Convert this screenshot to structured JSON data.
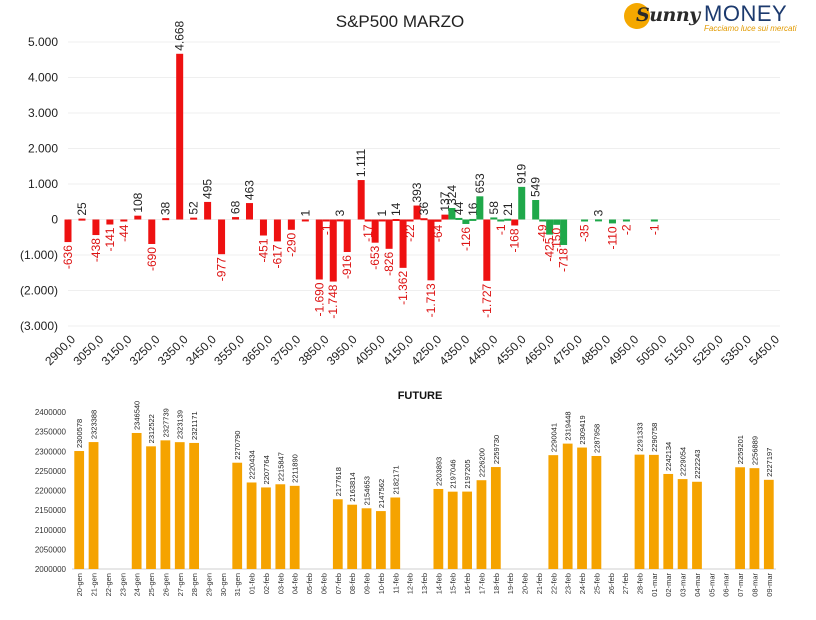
{
  "logo": {
    "sunny": "Sunny",
    "money": "MONEY",
    "tagline": "Facciamo luce sui mercati"
  },
  "colors": {
    "negative": "#ee1111",
    "positive": "#1fa84a",
    "future": "#f5a300",
    "text": "#222222",
    "neg_text": "#dd1111"
  },
  "chart_data": [
    {
      "type": "bar",
      "title": "S&P500 MARZO",
      "ylim": [
        -3000,
        5000
      ],
      "yticks": [
        5000,
        4000,
        3000,
        2000,
        1000,
        0,
        -1000,
        -2000,
        -3000
      ],
      "ytick_labels": [
        "5.000",
        "4.000",
        "3.000",
        "2.000",
        "1.000",
        "0",
        "(1.000)",
        "(2.000)",
        "(3.000)"
      ],
      "x_range": [
        2900,
        5450
      ],
      "xtick_labels": [
        "2900,0",
        "3050,0",
        "3150,0",
        "3250,0",
        "3350,0",
        "3450,0",
        "3550,0",
        "3650,0",
        "3750,0",
        "3850,0",
        "3950,0",
        "4050,0",
        "4150,0",
        "4250,0",
        "4350,0",
        "4450,0",
        "4550,0",
        "4650,0",
        "4750,0",
        "4850,0",
        "4950,0",
        "5050,0",
        "5150,0",
        "5250,0",
        "5350,0",
        "5450,0"
      ],
      "bars": [
        {
          "strike": 2900,
          "value": -636,
          "label": "-636",
          "color": "red"
        },
        {
          "strike": 2950,
          "value": 25,
          "label": "25",
          "color": "red"
        },
        {
          "strike": 3000,
          "value": -438,
          "label": "-438",
          "color": "red"
        },
        {
          "strike": 3050,
          "value": -141,
          "label": "-141",
          "color": "red"
        },
        {
          "strike": 3100,
          "value": -44,
          "label": "-44",
          "color": "red"
        },
        {
          "strike": 3150,
          "value": 108,
          "label": "108",
          "color": "red"
        },
        {
          "strike": 3200,
          "value": -690,
          "label": "-690",
          "color": "red"
        },
        {
          "strike": 3250,
          "value": 38,
          "label": "38",
          "color": "red"
        },
        {
          "strike": 3300,
          "value": 4668,
          "label": "4.668",
          "color": "red"
        },
        {
          "strike": 3350,
          "value": 52,
          "label": "52",
          "color": "red"
        },
        {
          "strike": 3400,
          "value": 495,
          "label": "495",
          "color": "red"
        },
        {
          "strike": 3450,
          "value": -977,
          "label": "-977",
          "color": "red"
        },
        {
          "strike": 3500,
          "value": 68,
          "label": "68",
          "color": "red"
        },
        {
          "strike": 3550,
          "value": 463,
          "label": "463",
          "color": "red"
        },
        {
          "strike": 3600,
          "value": -451,
          "label": "-451",
          "color": "red"
        },
        {
          "strike": 3650,
          "value": -617,
          "label": "-617",
          "color": "red"
        },
        {
          "strike": 3700,
          "value": -290,
          "label": "-290",
          "color": "red"
        },
        {
          "strike": 3750,
          "value": 1,
          "label": "1",
          "color": "red"
        },
        {
          "strike": 3800,
          "value": -1690,
          "label": "-1.690",
          "color": "red"
        },
        {
          "strike": 3825,
          "value": -1,
          "label": "-1",
          "color": "red"
        },
        {
          "strike": 3850,
          "value": -1748,
          "label": "-1.748",
          "color": "red"
        },
        {
          "strike": 3875,
          "value": 3,
          "label": "3",
          "color": "red"
        },
        {
          "strike": 3900,
          "value": -916,
          "label": "-916",
          "color": "red"
        },
        {
          "strike": 3950,
          "value": 1111,
          "label": "1.111",
          "color": "red"
        },
        {
          "strike": 3975,
          "value": -17,
          "label": "-17",
          "color": "red"
        },
        {
          "strike": 4000,
          "value": -653,
          "label": "-653",
          "color": "red"
        },
        {
          "strike": 4025,
          "value": 1,
          "label": "1",
          "color": "red"
        },
        {
          "strike": 4050,
          "value": -826,
          "label": "-826",
          "color": "red"
        },
        {
          "strike": 4075,
          "value": 14,
          "label": "14",
          "color": "red"
        },
        {
          "strike": 4100,
          "value": -1362,
          "label": "-1.362",
          "color": "red"
        },
        {
          "strike": 4125,
          "value": -22,
          "label": "-22",
          "color": "red"
        },
        {
          "strike": 4150,
          "value": 393,
          "label": "393",
          "color": "red"
        },
        {
          "strike": 4175,
          "value": 36,
          "label": "36",
          "color": "red"
        },
        {
          "strike": 4200,
          "value": -1713,
          "label": "-1.713",
          "color": "red"
        },
        {
          "strike": 4225,
          "value": -64,
          "label": "-64",
          "color": "red"
        },
        {
          "strike": 4250,
          "value": 137,
          "label": "137",
          "color": "red"
        },
        {
          "strike": 4275,
          "value": 324,
          "label": "324",
          "color": "green"
        },
        {
          "strike": 4300,
          "value": 44,
          "label": "44",
          "color": "green"
        },
        {
          "strike": 4325,
          "value": -126,
          "label": "-126",
          "color": "green"
        },
        {
          "strike": 4350,
          "value": 16,
          "label": "16",
          "color": "green"
        },
        {
          "strike": 4375,
          "value": 653,
          "label": "653",
          "color": "green"
        },
        {
          "strike": 4400,
          "value": -1727,
          "label": "-1.727",
          "color": "red"
        },
        {
          "strike": 4425,
          "value": 58,
          "label": "58",
          "color": "green"
        },
        {
          "strike": 4450,
          "value": -1,
          "label": "-1",
          "color": "green"
        },
        {
          "strike": 4475,
          "value": 21,
          "label": "21",
          "color": "green"
        },
        {
          "strike": 4500,
          "value": -168,
          "label": "-168",
          "color": "red"
        },
        {
          "strike": 4525,
          "value": 919,
          "label": "919",
          "color": "green"
        },
        {
          "strike": 4575,
          "value": 549,
          "label": "549",
          "color": "green"
        },
        {
          "strike": 4600,
          "value": -49,
          "label": "-49",
          "color": "green"
        },
        {
          "strike": 4625,
          "value": -425,
          "label": "-425",
          "color": "green"
        },
        {
          "strike": 4650,
          "value": -150,
          "label": "-150",
          "color": "green"
        },
        {
          "strike": 4675,
          "value": -718,
          "label": "-718",
          "color": "green"
        },
        {
          "strike": 4750,
          "value": -35,
          "label": "-35",
          "color": "green"
        },
        {
          "strike": 4800,
          "value": 3,
          "label": "3",
          "color": "green"
        },
        {
          "strike": 4850,
          "value": -110,
          "label": "-110",
          "color": "green"
        },
        {
          "strike": 4900,
          "value": -2,
          "label": "-2",
          "color": "green"
        },
        {
          "strike": 5000,
          "value": -1,
          "label": "-1",
          "color": "green"
        }
      ]
    },
    {
      "type": "bar",
      "title": "FUTURE",
      "ylim": [
        2000000,
        2400000
      ],
      "yticks": [
        2400000,
        2350000,
        2300000,
        2250000,
        2200000,
        2150000,
        2100000,
        2050000,
        2000000
      ],
      "categories": [
        "20-gen",
        "21-gen",
        "22-gen",
        "23-gen",
        "24-gen",
        "25-gen",
        "26-gen",
        "27-gen",
        "28-gen",
        "29-gen",
        "30-gen",
        "31-gen",
        "01-feb",
        "02-feb",
        "03-feb",
        "04-feb",
        "05-feb",
        "06-feb",
        "07-feb",
        "08-feb",
        "09-feb",
        "10-feb",
        "11-feb",
        "12-feb",
        "13-feb",
        "14-feb",
        "15-feb",
        "16-feb",
        "17-feb",
        "18-feb",
        "19-feb",
        "20-feb",
        "21-feb",
        "22-feb",
        "23-feb",
        "24-feb",
        "25-feb",
        "26-feb",
        "27-feb",
        "28-feb",
        "01-mar",
        "02-mar",
        "03-mar",
        "04-mar",
        "05-mar",
        "06-mar",
        "07-mar",
        "08-mar",
        "09-mar"
      ],
      "values": [
        2300578,
        2323388,
        null,
        null,
        2346540,
        2312522,
        2327739,
        2323139,
        2321171,
        null,
        null,
        2270790,
        2220434,
        2207764,
        2215847,
        2211890,
        null,
        null,
        2177618,
        2163814,
        2154653,
        2147562,
        2182171,
        null,
        null,
        2203893,
        2197046,
        2197205,
        2226200,
        2259730,
        null,
        null,
        null,
        2290041,
        2319448,
        2309419,
        2287958,
        null,
        null,
        2291333,
        2290758,
        2242134,
        2229054,
        2222243,
        null,
        null,
        2259201,
        2256889,
        2227197
      ]
    }
  ]
}
